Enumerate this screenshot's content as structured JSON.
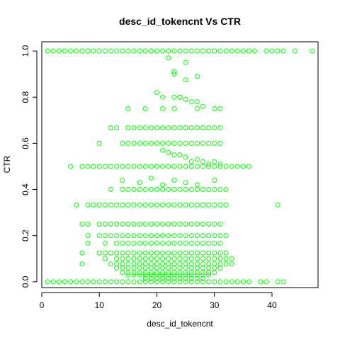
{
  "chart_data": {
    "type": "scatter",
    "title": "desc_id_tokencnt Vs CTR",
    "xlabel": "desc_id_tokencnt",
    "ylabel": "CTR",
    "xlim": [
      0,
      48
    ],
    "ylim": [
      -0.025,
      1.04
    ],
    "xticks": [
      0,
      10,
      20,
      30,
      40
    ],
    "yticks": [
      0.0,
      0.2,
      0.4,
      0.6,
      0.8,
      1.0
    ],
    "xtick_labels": [
      "0",
      "10",
      "20",
      "30",
      "40"
    ],
    "ytick_labels": [
      "0.0",
      "0.2",
      "0.4",
      "0.6",
      "0.8",
      "1.0"
    ],
    "marker": "open-circle",
    "point_color": "#00ff00",
    "grid": false,
    "series": [
      {
        "x": [
          1,
          2,
          3,
          4,
          5,
          6,
          7,
          8,
          9,
          10,
          11,
          12,
          13,
          14,
          15,
          16,
          17,
          18,
          19,
          20,
          21,
          22,
          23,
          24,
          25,
          26,
          27,
          28,
          29,
          30,
          31,
          32,
          33,
          34,
          35,
          36,
          37,
          39,
          40,
          41,
          42,
          44,
          47,
          1,
          2,
          3,
          4,
          5,
          6,
          7,
          8,
          9,
          10,
          11,
          12,
          13,
          14,
          15,
          16,
          17,
          18,
          19,
          20,
          21,
          22,
          23,
          24,
          25,
          26,
          27,
          28,
          29,
          30,
          31,
          32,
          33,
          34,
          35,
          36,
          38,
          39,
          41,
          42,
          22,
          25,
          23,
          23,
          27,
          25,
          20,
          24,
          21,
          23,
          24,
          25,
          26,
          27,
          28,
          15,
          18,
          21,
          23,
          27,
          30,
          31,
          12,
          13,
          15,
          16,
          17,
          18,
          19,
          20,
          21,
          22,
          23,
          24,
          25,
          26,
          27,
          28,
          29,
          30,
          31,
          10,
          14,
          15,
          16,
          17,
          18,
          19,
          20,
          21,
          22,
          23,
          24,
          25,
          26,
          27,
          28,
          29,
          30,
          31,
          21,
          22,
          23,
          24,
          25,
          26,
          27,
          28,
          29,
          30,
          31,
          5,
          7,
          8,
          9,
          10,
          11,
          12,
          13,
          14,
          15,
          16,
          17,
          18,
          19,
          20,
          21,
          22,
          23,
          24,
          25,
          26,
          27,
          28,
          29,
          30,
          31,
          32,
          33,
          34,
          35,
          36,
          14,
          17,
          19,
          21,
          23,
          25,
          27,
          30,
          12,
          14,
          15,
          16,
          17,
          18,
          19,
          20,
          21,
          22,
          23,
          24,
          25,
          26,
          27,
          28,
          29,
          30,
          31,
          32,
          6,
          8,
          9,
          10,
          11,
          12,
          13,
          14,
          15,
          16,
          17,
          18,
          19,
          20,
          21,
          22,
          23,
          24,
          25,
          26,
          27,
          28,
          29,
          30,
          31,
          32,
          41,
          7,
          8,
          10,
          11,
          12,
          13,
          14,
          15,
          16,
          17,
          18,
          19,
          20,
          21,
          22,
          23,
          24,
          25,
          26,
          27,
          28,
          29,
          30,
          31,
          8,
          10,
          11,
          12,
          13,
          14,
          15,
          16,
          17,
          18,
          19,
          20,
          21,
          22,
          23,
          24,
          25,
          26,
          27,
          28,
          29,
          30,
          31,
          32,
          8,
          11,
          13,
          14,
          15,
          16,
          17,
          18,
          19,
          20,
          21,
          22,
          23,
          24,
          25,
          26,
          27,
          28,
          29,
          30,
          31,
          7,
          10,
          11,
          12,
          13,
          14,
          15,
          16,
          17,
          18,
          19,
          20,
          21,
          22,
          23,
          24,
          25,
          26,
          27,
          28,
          29,
          30,
          31,
          32,
          11,
          13,
          14,
          15,
          16,
          17,
          18,
          19,
          20,
          21,
          22,
          23,
          24,
          25,
          26,
          27,
          28,
          29,
          30,
          31,
          32,
          33,
          7,
          12,
          13,
          14,
          15,
          16,
          17,
          18,
          19,
          20,
          21,
          22,
          23,
          24,
          25,
          26,
          27,
          28,
          29,
          30,
          31,
          32,
          33,
          13,
          14,
          15,
          16,
          17,
          18,
          19,
          20,
          21,
          22,
          23,
          24,
          25,
          26,
          27,
          28,
          29,
          30,
          31,
          14,
          15,
          16,
          17,
          18,
          19,
          20,
          21,
          22,
          23,
          24,
          25,
          26,
          27,
          28,
          29,
          30,
          15,
          16,
          17,
          18,
          19,
          20,
          21,
          22,
          23,
          24,
          25,
          26,
          27,
          28,
          29,
          18,
          19,
          20,
          21,
          22,
          23,
          24,
          25,
          26,
          27,
          28
        ],
        "y": [
          1,
          1,
          1,
          1,
          1,
          1,
          1,
          1,
          1,
          1,
          1,
          1,
          1,
          1,
          1,
          1,
          1,
          1,
          1,
          1,
          1,
          1,
          1,
          1,
          1,
          1,
          1,
          1,
          1,
          1,
          1,
          1,
          1,
          1,
          1,
          1,
          1,
          1,
          1,
          1,
          1,
          1,
          1,
          0,
          0,
          0,
          0,
          0,
          0,
          0,
          0,
          0,
          0,
          0,
          0,
          0,
          0,
          0,
          0,
          0,
          0,
          0,
          0,
          0,
          0,
          0,
          0,
          0,
          0,
          0,
          0,
          0,
          0,
          0,
          0,
          0,
          0,
          0,
          0,
          0,
          0,
          0,
          0,
          0.97,
          0.95,
          0.91,
          0.9,
          0.89,
          0.875,
          0.82,
          0.8,
          0.8,
          0.8,
          0.8,
          0.79,
          0.78,
          0.78,
          0.76,
          0.75,
          0.75,
          0.75,
          0.75,
          0.75,
          0.75,
          0.75,
          0.667,
          0.667,
          0.667,
          0.667,
          0.667,
          0.667,
          0.667,
          0.667,
          0.667,
          0.667,
          0.667,
          0.667,
          0.667,
          0.667,
          0.667,
          0.667,
          0.667,
          0.667,
          0.667,
          0.6,
          0.6,
          0.6,
          0.6,
          0.6,
          0.6,
          0.6,
          0.6,
          0.6,
          0.6,
          0.6,
          0.6,
          0.6,
          0.6,
          0.6,
          0.6,
          0.6,
          0.6,
          0.6,
          0.57,
          0.56,
          0.55,
          0.55,
          0.54,
          0.52,
          0.53,
          0.52,
          0.51,
          0.52,
          0.51,
          0.5,
          0.5,
          0.5,
          0.5,
          0.5,
          0.5,
          0.5,
          0.5,
          0.5,
          0.5,
          0.5,
          0.5,
          0.5,
          0.5,
          0.5,
          0.5,
          0.5,
          0.5,
          0.5,
          0.5,
          0.5,
          0.5,
          0.5,
          0.5,
          0.5,
          0.5,
          0.5,
          0.5,
          0.5,
          0.5,
          0.5,
          0.44,
          0.43,
          0.45,
          0.42,
          0.44,
          0.43,
          0.42,
          0.44,
          0.4,
          0.4,
          0.4,
          0.4,
          0.4,
          0.4,
          0.4,
          0.4,
          0.4,
          0.4,
          0.4,
          0.4,
          0.4,
          0.4,
          0.4,
          0.4,
          0.4,
          0.4,
          0.4,
          0.4,
          0.333,
          0.333,
          0.333,
          0.333,
          0.333,
          0.333,
          0.333,
          0.333,
          0.333,
          0.333,
          0.333,
          0.333,
          0.333,
          0.333,
          0.333,
          0.333,
          0.333,
          0.333,
          0.333,
          0.333,
          0.333,
          0.333,
          0.333,
          0.333,
          0.333,
          0.333,
          0.333,
          0.25,
          0.25,
          0.25,
          0.25,
          0.25,
          0.25,
          0.25,
          0.25,
          0.25,
          0.25,
          0.25,
          0.25,
          0.25,
          0.25,
          0.25,
          0.25,
          0.25,
          0.25,
          0.25,
          0.25,
          0.25,
          0.25,
          0.25,
          0.25,
          0.2,
          0.2,
          0.2,
          0.2,
          0.2,
          0.2,
          0.2,
          0.2,
          0.2,
          0.2,
          0.2,
          0.2,
          0.2,
          0.2,
          0.2,
          0.2,
          0.2,
          0.2,
          0.2,
          0.2,
          0.2,
          0.2,
          0.2,
          0.2,
          0.167,
          0.167,
          0.167,
          0.167,
          0.167,
          0.167,
          0.167,
          0.167,
          0.167,
          0.167,
          0.167,
          0.167,
          0.167,
          0.167,
          0.167,
          0.167,
          0.167,
          0.167,
          0.167,
          0.167,
          0.167,
          0.125,
          0.125,
          0.125,
          0.125,
          0.125,
          0.125,
          0.125,
          0.125,
          0.125,
          0.125,
          0.125,
          0.125,
          0.125,
          0.125,
          0.125,
          0.125,
          0.125,
          0.125,
          0.125,
          0.125,
          0.125,
          0.125,
          0.125,
          0.125,
          0.1,
          0.1,
          0.1,
          0.1,
          0.1,
          0.1,
          0.1,
          0.1,
          0.1,
          0.1,
          0.1,
          0.1,
          0.1,
          0.1,
          0.1,
          0.1,
          0.1,
          0.1,
          0.1,
          0.1,
          0.1,
          0.1,
          0.077,
          0.077,
          0.077,
          0.077,
          0.077,
          0.077,
          0.077,
          0.077,
          0.077,
          0.077,
          0.077,
          0.077,
          0.077,
          0.077,
          0.077,
          0.077,
          0.077,
          0.077,
          0.077,
          0.077,
          0.077,
          0.077,
          0.077,
          0.06,
          0.06,
          0.06,
          0.06,
          0.06,
          0.06,
          0.06,
          0.06,
          0.06,
          0.06,
          0.06,
          0.06,
          0.06,
          0.06,
          0.06,
          0.06,
          0.06,
          0.06,
          0.06,
          0.04,
          0.04,
          0.04,
          0.04,
          0.04,
          0.04,
          0.04,
          0.04,
          0.04,
          0.04,
          0.04,
          0.04,
          0.04,
          0.04,
          0.04,
          0.04,
          0.04,
          0.03,
          0.03,
          0.03,
          0.03,
          0.03,
          0.03,
          0.03,
          0.03,
          0.03,
          0.03,
          0.03,
          0.03,
          0.03,
          0.03,
          0.03,
          0.015,
          0.015,
          0.015,
          0.015,
          0.015,
          0.015,
          0.015,
          0.015,
          0.015,
          0.015,
          0.015
        ]
      }
    ]
  }
}
